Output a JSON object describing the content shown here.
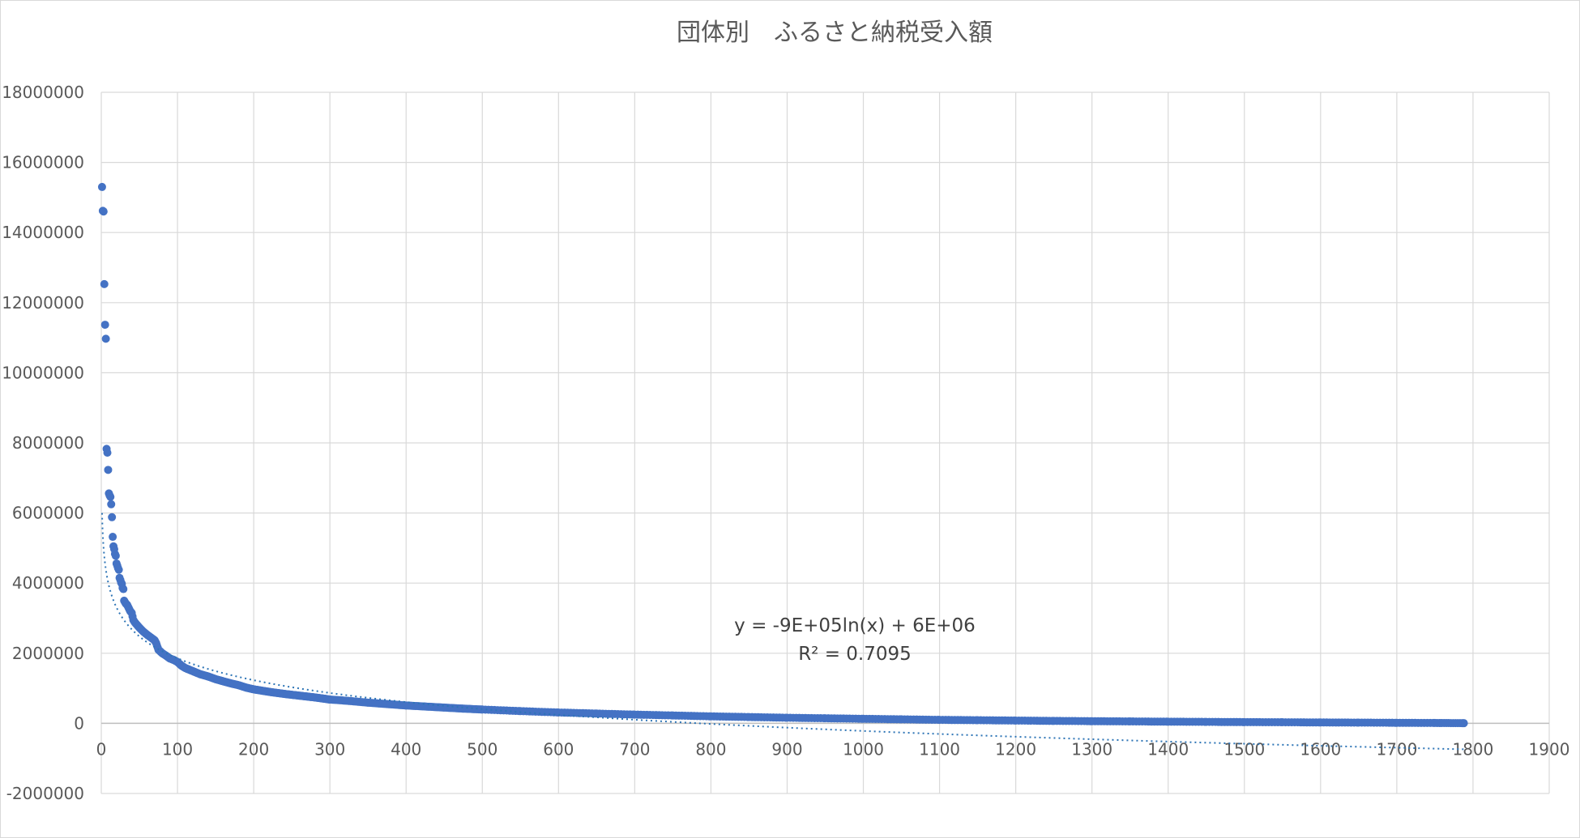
{
  "chart_data": {
    "type": "scatter",
    "title": "団体別　ふるさと納税受入額",
    "xlabel": "",
    "ylabel": "",
    "xlim": [
      0,
      1900
    ],
    "ylim": [
      -2000000,
      18000000
    ],
    "x_ticks": [
      "0",
      "100",
      "200",
      "300",
      "400",
      "500",
      "600",
      "700",
      "800",
      "900",
      "1000",
      "1100",
      "1200",
      "1300",
      "1400",
      "1500",
      "1600",
      "1700",
      "1800",
      "1900"
    ],
    "y_ticks": [
      "18000000",
      "16000000",
      "14000000",
      "12000000",
      "10000000",
      "8000000",
      "6000000",
      "4000000",
      "2000000",
      "0",
      "-2000000"
    ],
    "grid": true,
    "legend": "none",
    "marker_color": "#4472c4",
    "trendline_color": "#2e75b6",
    "series": [
      {
        "points": [
          [
            1,
            15300000
          ],
          [
            2,
            14620000
          ],
          [
            3,
            14600000
          ],
          [
            4,
            12530000
          ],
          [
            5,
            11370000
          ],
          [
            6,
            10970000
          ],
          [
            7,
            7830000
          ],
          [
            8,
            7720000
          ],
          [
            9,
            7230000
          ],
          [
            10,
            6560000
          ],
          [
            11,
            6500000
          ],
          [
            12,
            6460000
          ],
          [
            13,
            6250000
          ],
          [
            14,
            5880000
          ],
          [
            15,
            5320000
          ],
          [
            16,
            5050000
          ],
          [
            17,
            4970000
          ],
          [
            18,
            4830000
          ],
          [
            19,
            4780000
          ],
          [
            20,
            4560000
          ],
          [
            21,
            4500000
          ],
          [
            22,
            4430000
          ],
          [
            23,
            4380000
          ],
          [
            24,
            4150000
          ],
          [
            25,
            4090000
          ],
          [
            26,
            4020000
          ],
          [
            27,
            3980000
          ],
          [
            28,
            3860000
          ],
          [
            29,
            3830000
          ],
          [
            30,
            3500000
          ],
          [
            32,
            3420000
          ],
          [
            34,
            3380000
          ],
          [
            36,
            3290000
          ],
          [
            38,
            3200000
          ],
          [
            40,
            3150000
          ],
          [
            42,
            2950000
          ],
          [
            44,
            2880000
          ],
          [
            46,
            2830000
          ],
          [
            48,
            2780000
          ],
          [
            50,
            2730000
          ],
          [
            55,
            2620000
          ],
          [
            60,
            2530000
          ],
          [
            65,
            2450000
          ],
          [
            70,
            2370000
          ],
          [
            72,
            2290000
          ],
          [
            75,
            2100000
          ],
          [
            80,
            2000000
          ],
          [
            85,
            1930000
          ],
          [
            90,
            1850000
          ],
          [
            95,
            1810000
          ],
          [
            100,
            1750000
          ],
          [
            105,
            1650000
          ],
          [
            110,
            1580000
          ],
          [
            120,
            1490000
          ],
          [
            130,
            1400000
          ],
          [
            140,
            1340000
          ],
          [
            150,
            1260000
          ],
          [
            160,
            1200000
          ],
          [
            170,
            1140000
          ],
          [
            180,
            1090000
          ],
          [
            190,
            1020000
          ],
          [
            200,
            970000
          ],
          [
            220,
            900000
          ],
          [
            240,
            840000
          ],
          [
            260,
            790000
          ],
          [
            280,
            740000
          ],
          [
            300,
            680000
          ],
          [
            325,
            640000
          ],
          [
            350,
            590000
          ],
          [
            375,
            550000
          ],
          [
            400,
            510000
          ],
          [
            425,
            480000
          ],
          [
            450,
            450000
          ],
          [
            475,
            420000
          ],
          [
            500,
            395000
          ],
          [
            550,
            350000
          ],
          [
            600,
            310000
          ],
          [
            650,
            280000
          ],
          [
            700,
            250000
          ],
          [
            750,
            225000
          ],
          [
            800,
            200000
          ],
          [
            850,
            180000
          ],
          [
            900,
            160000
          ],
          [
            950,
            145000
          ],
          [
            1000,
            130000
          ],
          [
            1050,
            115000
          ],
          [
            1100,
            100000
          ],
          [
            1150,
            90000
          ],
          [
            1200,
            80000
          ],
          [
            1250,
            70000
          ],
          [
            1300,
            62000
          ],
          [
            1350,
            55000
          ],
          [
            1400,
            48000
          ],
          [
            1450,
            42000
          ],
          [
            1500,
            36000
          ],
          [
            1550,
            31000
          ],
          [
            1600,
            26000
          ],
          [
            1650,
            21000
          ],
          [
            1700,
            16000
          ],
          [
            1750,
            11000
          ],
          [
            1788,
            5000
          ]
        ]
      }
    ],
    "trendline": {
      "type": "logarithmic",
      "slope": -900000,
      "intercept": 6000000,
      "x_range": [
        1,
        1788
      ],
      "equation": "y = -9E+05ln(x) + 6E+06",
      "r_squared": "R² = 0.7095"
    }
  }
}
